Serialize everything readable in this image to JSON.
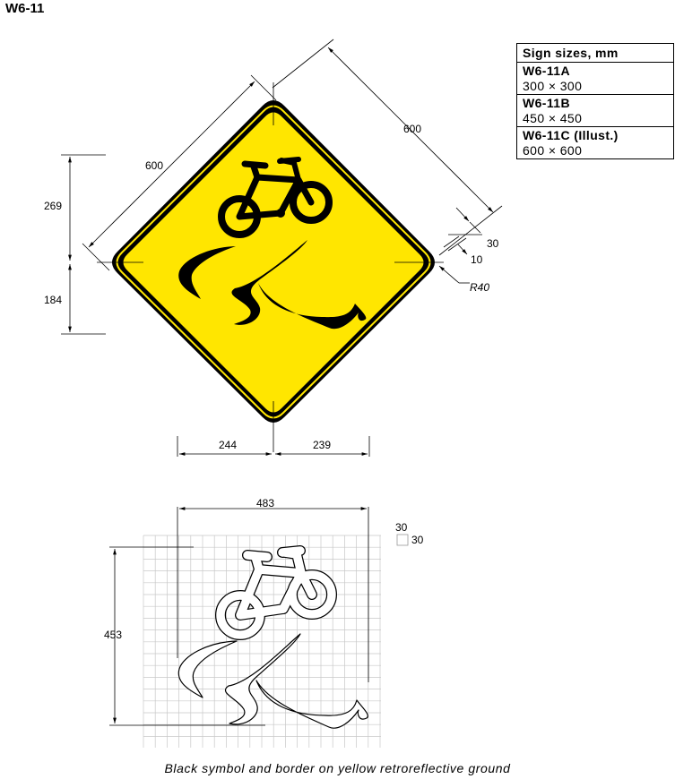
{
  "title": "W6-11",
  "sizes_table": {
    "header": "Sign sizes, mm",
    "rows": [
      {
        "code": "W6-11A",
        "size": "300 × 300"
      },
      {
        "code": "W6-11B",
        "size": "450 × 450"
      },
      {
        "code": "W6-11C  (Illust.)",
        "size": "600 × 600"
      }
    ]
  },
  "dimensions": {
    "side_left": "600",
    "side_right": "600",
    "height_upper": "269",
    "height_lower": "184",
    "width_left": "244",
    "width_right": "239",
    "border_outer": "30",
    "border_inner": "10",
    "corner_radius": "R40",
    "grid_width": "483",
    "grid_height": "453",
    "grid_cell_w": "30",
    "grid_cell_h": "30"
  },
  "caption": "Black symbol and border on yellow retroreflective ground",
  "colors": {
    "ground": "#ffe600",
    "symbol": "#000000",
    "border": "#000000"
  },
  "icons": [
    "bicycle-symbol",
    "slippery-road-skid-symbol"
  ]
}
